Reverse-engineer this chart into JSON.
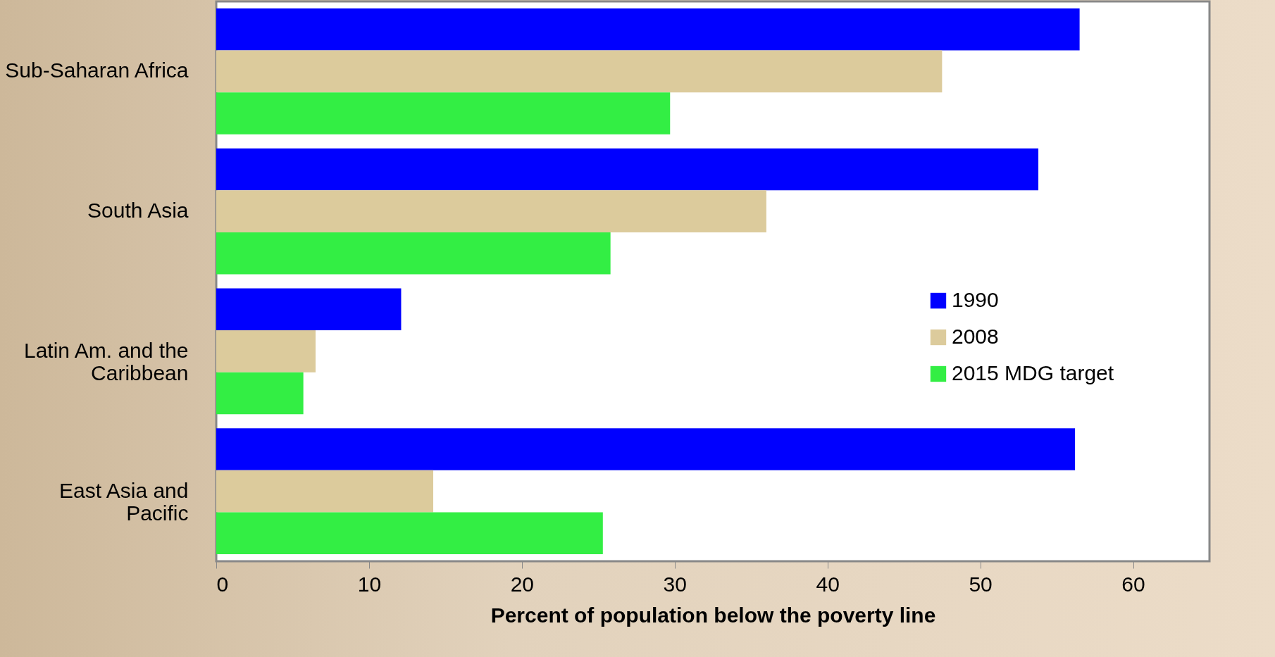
{
  "chart_data": {
    "type": "bar",
    "orientation": "horizontal",
    "xlabel": "Percent of population below the poverty line",
    "categories": [
      "Sub-Saharan Africa",
      "South Asia",
      "Latin Am. and the Caribbean",
      "East Asia and Pacific"
    ],
    "series": [
      {
        "name": "1990",
        "color": "#0000ff",
        "values": [
          56.5,
          53.8,
          12.1,
          56.2
        ]
      },
      {
        "name": "2008",
        "color": "#dccb9c",
        "values": [
          47.5,
          36.0,
          6.5,
          14.2
        ]
      },
      {
        "name": "2015 MDG target",
        "color": "#33ee44",
        "values": [
          29.7,
          25.8,
          5.7,
          25.3
        ]
      }
    ],
    "xlim": [
      0,
      65
    ],
    "xticks": [
      0,
      10,
      20,
      30,
      40,
      50,
      60
    ],
    "grid": false,
    "legend": "right"
  }
}
